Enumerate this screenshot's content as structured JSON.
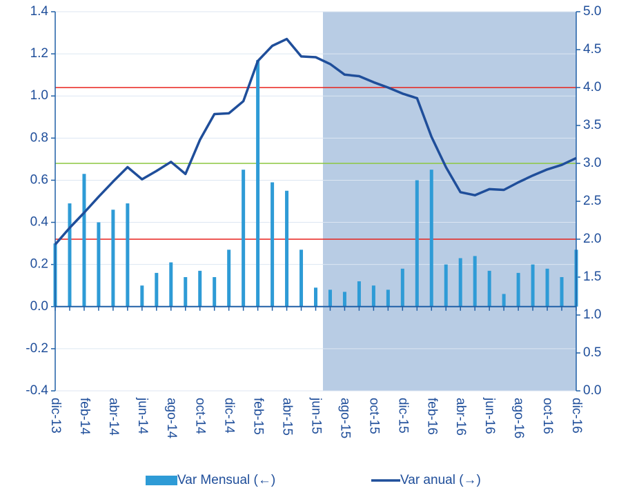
{
  "chart_data": {
    "type": "bar_line",
    "categories": [
      "dic-13",
      null,
      "feb-14",
      null,
      "abr-14",
      null,
      "jun-14",
      null,
      "ago-14",
      null,
      "oct-14",
      null,
      "dic-14",
      null,
      "feb-15",
      null,
      "abr-15",
      null,
      "jun-15",
      null,
      "ago-15",
      null,
      "oct-15",
      null,
      "dic-15",
      null,
      "feb-16",
      null,
      "abr-16",
      null,
      "jun-16",
      null,
      "ago-16",
      null,
      "oct-16",
      null,
      "dic-16"
    ],
    "series": [
      {
        "name": "Var Mensual (←)",
        "type": "bar",
        "axis": "y",
        "color": "#2e9bd6",
        "values": [
          0.3,
          0.49,
          0.63,
          0.4,
          0.46,
          0.49,
          0.1,
          0.16,
          0.21,
          0.14,
          0.17,
          0.14,
          0.27,
          0.65,
          1.17,
          0.59,
          0.55,
          0.27,
          0.09,
          0.08,
          0.07,
          0.12,
          0.1,
          0.08,
          0.18,
          0.6,
          0.65,
          0.2,
          0.23,
          0.24,
          0.17,
          0.06,
          0.16,
          0.2,
          0.18,
          0.14,
          0.27
        ]
      },
      {
        "name": "Var anual (→)",
        "type": "line",
        "axis": "y2",
        "color": "#1f4e9a",
        "values": [
          1.93,
          2.15,
          2.35,
          2.56,
          2.76,
          2.95,
          2.79,
          2.9,
          3.02,
          2.86,
          3.31,
          3.65,
          3.66,
          3.82,
          4.35,
          4.55,
          4.64,
          4.41,
          4.4,
          4.31,
          4.17,
          4.15,
          4.07,
          4.0,
          3.92,
          3.86,
          3.35,
          2.95,
          2.62,
          2.58,
          2.66,
          2.65,
          2.75,
          2.84,
          2.92,
          2.98,
          3.07
        ]
      }
    ],
    "ylim": [
      -0.4,
      1.4
    ],
    "yticks": [
      {
        "value": -0.4,
        "label": "-0.4"
      },
      -0.2,
      {
        "value": 0,
        "label": "0.0"
      },
      0.2,
      0.4,
      0.6,
      0.8,
      {
        "value": 1,
        "label": "1.0"
      },
      1.2,
      1.4
    ],
    "y2lim": [
      0,
      5
    ],
    "y2ticks": [
      {
        "value": 0,
        "label": "0.0"
      },
      0.5,
      {
        "value": 1,
        "label": "1.0"
      },
      1.5,
      {
        "value": 2,
        "label": "2.0"
      },
      2.5,
      {
        "value": 3,
        "label": "3.0"
      },
      3.5,
      {
        "value": 4,
        "label": "4.0"
      },
      4.5,
      {
        "value": 5,
        "label": "5.0"
      }
    ],
    "grid": true,
    "reference_lines": [
      {
        "value": 4.0,
        "axis": "y2",
        "color": "#e8211b"
      },
      {
        "value": 2.0,
        "axis": "y2",
        "color": "#e8211b"
      },
      {
        "value": 3.0,
        "axis": "y2",
        "color": "#8cc63f"
      }
    ],
    "shade": {
      "from_index": 18.5,
      "to_index": 36,
      "color": "#b8cce4"
    },
    "legend": "bottom"
  }
}
